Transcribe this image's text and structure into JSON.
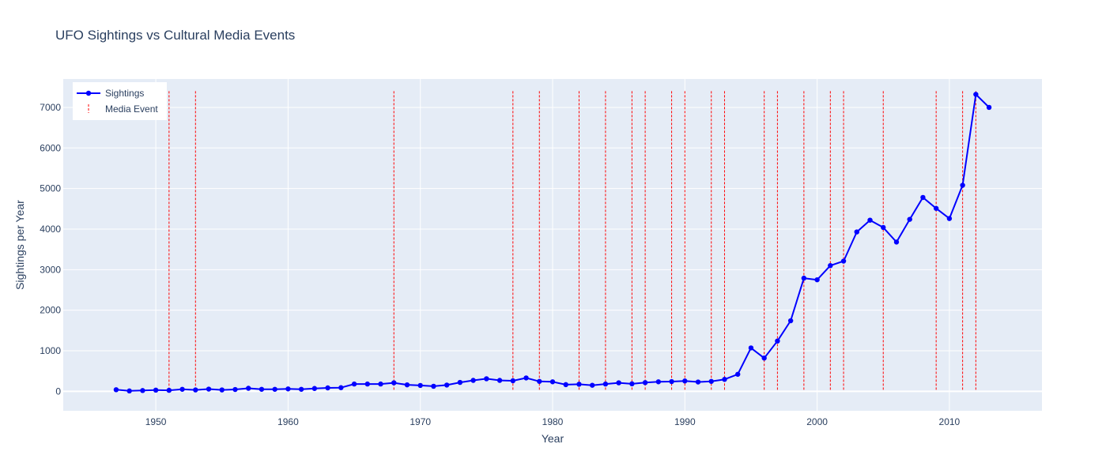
{
  "chart_data": {
    "type": "line",
    "title": "UFO Sightings vs Cultural Media Events",
    "xlabel": "Year",
    "ylabel": "Sightings per Year",
    "xlim": [
      1943,
      2017
    ],
    "ylim": [
      -480,
      7700
    ],
    "xticks": [
      1950,
      1960,
      1970,
      1980,
      1990,
      2000,
      2010
    ],
    "yticks": [
      0,
      1000,
      2000,
      3000,
      4000,
      5000,
      6000,
      7000
    ],
    "grid": true,
    "legend": "top-left",
    "plot_bg": "#e5ecf6",
    "series": [
      {
        "name": "Sightings",
        "color": "#0000ff",
        "mode": "lines+markers",
        "x": [
          1947,
          1948,
          1949,
          1950,
          1951,
          1952,
          1953,
          1954,
          1955,
          1956,
          1957,
          1958,
          1959,
          1960,
          1961,
          1962,
          1963,
          1964,
          1965,
          1966,
          1967,
          1968,
          1969,
          1970,
          1971,
          1972,
          1973,
          1974,
          1975,
          1976,
          1977,
          1978,
          1979,
          1980,
          1981,
          1982,
          1983,
          1984,
          1985,
          1986,
          1987,
          1988,
          1989,
          1990,
          1991,
          1992,
          1993,
          1994,
          1995,
          1996,
          1997,
          1998,
          1999,
          2000,
          2001,
          2002,
          2003,
          2004,
          2005,
          2006,
          2007,
          2008,
          2009,
          2010,
          2011,
          2012,
          2013
        ],
        "y": [
          40,
          10,
          20,
          30,
          25,
          50,
          35,
          55,
          35,
          45,
          75,
          50,
          50,
          60,
          50,
          70,
          85,
          90,
          180,
          180,
          180,
          210,
          160,
          145,
          125,
          155,
          220,
          270,
          310,
          270,
          260,
          330,
          245,
          235,
          165,
          175,
          150,
          180,
          210,
          185,
          215,
          235,
          240,
          255,
          230,
          245,
          295,
          420,
          1070,
          820,
          1240,
          1740,
          2790,
          2750,
          3100,
          3210,
          3930,
          4220,
          4040,
          3680,
          4240,
          4780,
          4510,
          4260,
          5080,
          7320,
          7000
        ]
      },
      {
        "name": "Media Event",
        "color": "#ff0000",
        "mode": "vlines",
        "x": [
          1951,
          1953,
          1968,
          1977,
          1979,
          1982,
          1984,
          1986,
          1987,
          1989,
          1990,
          1992,
          1993,
          1996,
          1997,
          1999,
          2001,
          2002,
          2005,
          2009,
          2011,
          2012
        ],
        "y_top": 7400
      }
    ]
  }
}
